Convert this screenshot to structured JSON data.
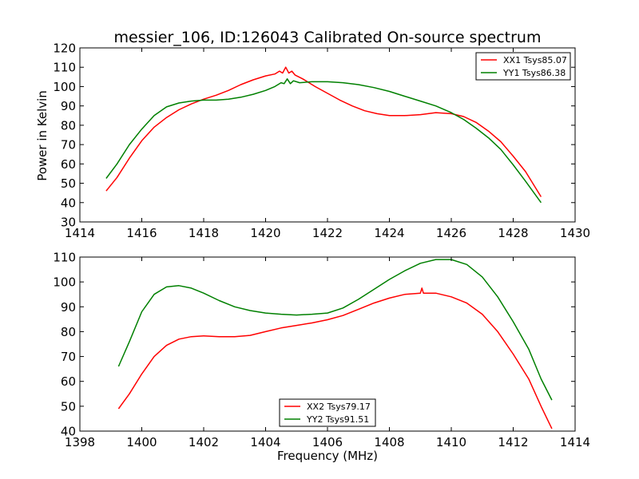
{
  "figure": {
    "title": "messier_106, ID:126043 Calibrated On-source spectrum",
    "ylabel": "Power in Kelvin",
    "xlabel": "Frequency (MHz)"
  },
  "chart_data": [
    {
      "type": "line",
      "title": "messier_106, ID:126043 Calibrated On-source spectrum",
      "xlabel": "",
      "ylabel": "Power in Kelvin",
      "xlim": [
        1414,
        1430
      ],
      "ylim": [
        30,
        120
      ],
      "xticks": [
        1414,
        1416,
        1418,
        1420,
        1422,
        1424,
        1426,
        1428,
        1430
      ],
      "yticks": [
        30,
        40,
        50,
        60,
        70,
        80,
        90,
        100,
        110,
        120
      ],
      "grid": false,
      "legend_position": "top-right",
      "series": [
        {
          "name": "XX1 Tsys85.07",
          "color": "#ff0000",
          "points": [
            [
              1414.85,
              46
            ],
            [
              1415.2,
              53
            ],
            [
              1415.6,
              63
            ],
            [
              1416.0,
              72
            ],
            [
              1416.4,
              79
            ],
            [
              1416.8,
              84
            ],
            [
              1417.2,
              88
            ],
            [
              1417.6,
              91
            ],
            [
              1418.0,
              93.5
            ],
            [
              1418.4,
              95.5
            ],
            [
              1418.8,
              98
            ],
            [
              1419.2,
              101
            ],
            [
              1419.6,
              103.5
            ],
            [
              1420.0,
              105.5
            ],
            [
              1420.3,
              106.5
            ],
            [
              1420.45,
              108
            ],
            [
              1420.55,
              107
            ],
            [
              1420.65,
              110
            ],
            [
              1420.75,
              107
            ],
            [
              1420.85,
              108
            ],
            [
              1420.95,
              106
            ],
            [
              1421.2,
              104
            ],
            [
              1421.6,
              100
            ],
            [
              1422.0,
              96.5
            ],
            [
              1422.4,
              93
            ],
            [
              1422.8,
              90
            ],
            [
              1423.2,
              87.5
            ],
            [
              1423.6,
              86
            ],
            [
              1424.0,
              85
            ],
            [
              1424.5,
              85
            ],
            [
              1425.0,
              85.5
            ],
            [
              1425.5,
              86.5
            ],
            [
              1426.0,
              86
            ],
            [
              1426.4,
              84.5
            ],
            [
              1426.8,
              81.5
            ],
            [
              1427.2,
              77
            ],
            [
              1427.6,
              71.5
            ],
            [
              1428.0,
              64
            ],
            [
              1428.4,
              56
            ],
            [
              1428.9,
              43
            ]
          ]
        },
        {
          "name": "YY1 Tsys86.38",
          "color": "#008000",
          "points": [
            [
              1414.85,
              52.5
            ],
            [
              1415.2,
              60
            ],
            [
              1415.6,
              70
            ],
            [
              1416.0,
              78
            ],
            [
              1416.4,
              85
            ],
            [
              1416.8,
              89.5
            ],
            [
              1417.2,
              91.5
            ],
            [
              1417.6,
              92.5
            ],
            [
              1418.0,
              93
            ],
            [
              1418.4,
              93
            ],
            [
              1418.8,
              93.5
            ],
            [
              1419.2,
              94.5
            ],
            [
              1419.6,
              96
            ],
            [
              1420.0,
              98
            ],
            [
              1420.3,
              100
            ],
            [
              1420.5,
              102
            ],
            [
              1420.6,
              101.5
            ],
            [
              1420.7,
              104
            ],
            [
              1420.8,
              101.5
            ],
            [
              1420.9,
              103
            ],
            [
              1421.1,
              102
            ],
            [
              1421.5,
              102.5
            ],
            [
              1422.0,
              102.5
            ],
            [
              1422.5,
              102
            ],
            [
              1423.0,
              101
            ],
            [
              1423.5,
              99.5
            ],
            [
              1424.0,
              97.5
            ],
            [
              1424.5,
              95
            ],
            [
              1425.0,
              92.5
            ],
            [
              1425.5,
              90
            ],
            [
              1426.0,
              86.5
            ],
            [
              1426.4,
              83
            ],
            [
              1426.8,
              78.5
            ],
            [
              1427.2,
              73.5
            ],
            [
              1427.6,
              67.5
            ],
            [
              1428.0,
              59.5
            ],
            [
              1428.4,
              51
            ],
            [
              1428.9,
              40
            ]
          ]
        }
      ]
    },
    {
      "type": "line",
      "title": "",
      "xlabel": "Frequency (MHz)",
      "ylabel": "",
      "xlim": [
        1398,
        1414
      ],
      "ylim": [
        40,
        110
      ],
      "xticks": [
        1398,
        1400,
        1402,
        1404,
        1406,
        1408,
        1410,
        1412,
        1414
      ],
      "yticks": [
        40,
        50,
        60,
        70,
        80,
        90,
        100,
        110
      ],
      "grid": false,
      "legend_position": "bottom-center",
      "series": [
        {
          "name": "XX2 Tsys79.17",
          "color": "#ff0000",
          "points": [
            [
              1399.25,
              49
            ],
            [
              1399.6,
              55
            ],
            [
              1400.0,
              63
            ],
            [
              1400.4,
              70
            ],
            [
              1400.8,
              74.5
            ],
            [
              1401.2,
              77
            ],
            [
              1401.6,
              78
            ],
            [
              1402.0,
              78.3
            ],
            [
              1402.5,
              78
            ],
            [
              1403.0,
              78
            ],
            [
              1403.5,
              78.5
            ],
            [
              1404.0,
              80
            ],
            [
              1404.5,
              81.5
            ],
            [
              1405.0,
              82.5
            ],
            [
              1405.5,
              83.5
            ],
            [
              1406.0,
              84.8
            ],
            [
              1406.5,
              86.5
            ],
            [
              1407.0,
              89
            ],
            [
              1407.5,
              91.5
            ],
            [
              1408.0,
              93.5
            ],
            [
              1408.5,
              95
            ],
            [
              1409.0,
              95.5
            ],
            [
              1409.05,
              97.5
            ],
            [
              1409.1,
              95.5
            ],
            [
              1409.5,
              95.5
            ],
            [
              1410.0,
              94
            ],
            [
              1410.5,
              91.5
            ],
            [
              1411.0,
              87
            ],
            [
              1411.5,
              80
            ],
            [
              1412.0,
              71
            ],
            [
              1412.5,
              61
            ],
            [
              1412.9,
              50
            ],
            [
              1413.25,
              41
            ]
          ]
        },
        {
          "name": "YY2 Tsys91.51",
          "color": "#008000",
          "points": [
            [
              1399.25,
              66
            ],
            [
              1399.6,
              76
            ],
            [
              1400.0,
              88
            ],
            [
              1400.4,
              95
            ],
            [
              1400.8,
              98
            ],
            [
              1401.2,
              98.5
            ],
            [
              1401.6,
              97.5
            ],
            [
              1402.0,
              95.5
            ],
            [
              1402.5,
              92.5
            ],
            [
              1403.0,
              90
            ],
            [
              1403.5,
              88.5
            ],
            [
              1404.0,
              87.5
            ],
            [
              1404.5,
              87
            ],
            [
              1405.0,
              86.7
            ],
            [
              1405.5,
              87
            ],
            [
              1406.0,
              87.5
            ],
            [
              1406.5,
              89.5
            ],
            [
              1407.0,
              93
            ],
            [
              1407.5,
              97
            ],
            [
              1408.0,
              101
            ],
            [
              1408.5,
              104.5
            ],
            [
              1409.0,
              107.5
            ],
            [
              1409.5,
              109
            ],
            [
              1410.0,
              109
            ],
            [
              1410.5,
              107
            ],
            [
              1411.0,
              102
            ],
            [
              1411.5,
              94
            ],
            [
              1412.0,
              84
            ],
            [
              1412.5,
              73
            ],
            [
              1412.9,
              61
            ],
            [
              1413.25,
              52.5
            ]
          ]
        }
      ]
    }
  ]
}
